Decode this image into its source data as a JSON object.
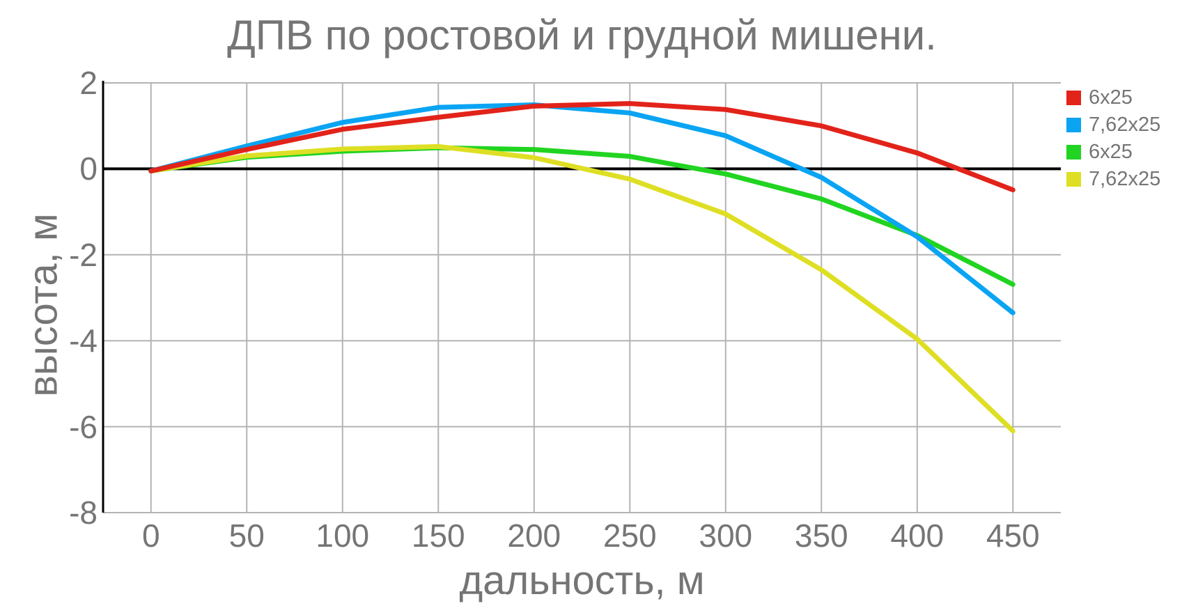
{
  "title": "ДПВ по ростовой и грудной мишени.",
  "colors": {
    "text": "#757575",
    "grid": "#b3b3b3",
    "axis": "#000000",
    "background": "#ffffff"
  },
  "chart_data": {
    "type": "line",
    "title": "ДПВ по ростовой и грудной мишени.",
    "xlabel": "дальность, м",
    "ylabel": "высота, м",
    "x": [
      0,
      50,
      100,
      150,
      200,
      250,
      300,
      350,
      400,
      450
    ],
    "series": [
      {
        "name": "6x25",
        "color": "#e2231a",
        "values": [
          -0.05,
          0.45,
          0.92,
          1.2,
          1.46,
          1.52,
          1.38,
          1.0,
          0.37,
          -0.49
        ]
      },
      {
        "name": "7,62x25",
        "color": "#0aa4f3",
        "values": [
          -0.05,
          0.53,
          1.08,
          1.43,
          1.49,
          1.3,
          0.77,
          -0.2,
          -1.58,
          -3.35
        ]
      },
      {
        "name": "6x25",
        "color": "#21d421",
        "values": [
          -0.05,
          0.27,
          0.41,
          0.49,
          0.45,
          0.29,
          -0.12,
          -0.7,
          -1.55,
          -2.69
        ]
      },
      {
        "name": "7,62x25",
        "color": "#dedf24",
        "values": [
          -0.05,
          0.3,
          0.46,
          0.52,
          0.26,
          -0.24,
          -1.05,
          -2.35,
          -3.96,
          -6.1
        ]
      }
    ],
    "xlim": [
      -25,
      475
    ],
    "ylim": [
      -8,
      2
    ],
    "x_ticks": [
      0,
      50,
      100,
      150,
      200,
      250,
      300,
      350,
      400,
      450
    ],
    "y_ticks": [
      2,
      0,
      -2,
      -4,
      -6,
      -8
    ],
    "grid": true,
    "zero_line": true,
    "legend_position": "right-top",
    "legend": [
      "6x25",
      "7,62x25",
      "6x25",
      "7,62x25"
    ]
  }
}
